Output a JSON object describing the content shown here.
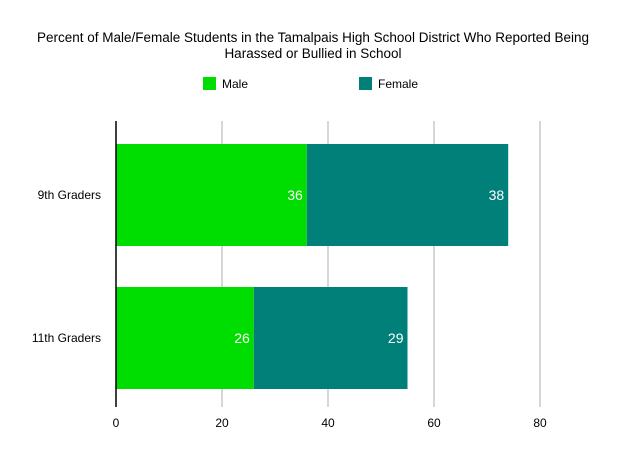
{
  "chart_data": {
    "type": "bar",
    "orientation": "horizontal",
    "stacked": true,
    "title": "Percent of Male/Female Students in the Tamalpais High School District Who Reported Being Harassed or Bullied in School",
    "title_lines": [
      "Percent of Male/Female Students in the Tamalpais High School District Who Reported Being",
      "Harassed or Bullied in School"
    ],
    "categories": [
      "9th Graders",
      "11th Graders"
    ],
    "series": [
      {
        "name": "Male",
        "values": [
          36,
          26
        ],
        "color": "#00dd00"
      },
      {
        "name": "Female",
        "values": [
          38,
          29
        ],
        "color": "#008078"
      }
    ],
    "xlim": [
      0,
      80
    ],
    "xticks": [
      0,
      20,
      40,
      60,
      80
    ],
    "xlabel": "",
    "ylabel": "",
    "grid": "vertical",
    "legend_position": "top"
  }
}
